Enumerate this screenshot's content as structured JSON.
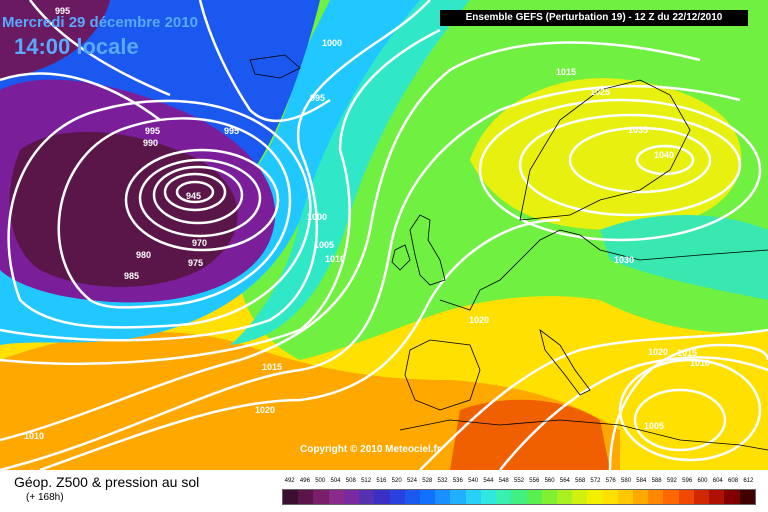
{
  "header": {
    "date": "Mercredi 29 décembre 2010",
    "time": "14:00 locale",
    "model_info": "Ensemble GEFS (Perturbation 19)  -  12 Z du 22/12/2010"
  },
  "copyright": "Copyright © 2010 Meteociel.fr",
  "legend": {
    "title": "Géop. Z500 & pression au sol",
    "subtitle": "(+ 168h)",
    "scale_values": [
      "492",
      "496",
      "500",
      "504",
      "508",
      "512",
      "516",
      "520",
      "524",
      "528",
      "532",
      "536",
      "540",
      "544",
      "548",
      "552",
      "556",
      "560",
      "564",
      "568",
      "572",
      "576",
      "580",
      "584",
      "588",
      "592",
      "596",
      "600",
      "604",
      "608",
      "612"
    ],
    "scale_colors": [
      "#3a1030",
      "#5a1648",
      "#7a1e6a",
      "#8c2a8c",
      "#7a2aa0",
      "#5530b0",
      "#3a30c8",
      "#2a40e0",
      "#1a58f0",
      "#1070ff",
      "#1890ff",
      "#20b0ff",
      "#28d0f8",
      "#30e8e0",
      "#38f0b0",
      "#40f080",
      "#58f050",
      "#80f030",
      "#a8f020",
      "#d0f010",
      "#f0f000",
      "#ffe000",
      "#ffc800",
      "#ffa800",
      "#ff8800",
      "#ff6800",
      "#f04800",
      "#d02800",
      "#b01000",
      "#800000",
      "#400000"
    ]
  },
  "isobar_labels": [
    {
      "text": "995"
    },
    {
      "text": "1000"
    },
    {
      "text": "995"
    },
    {
      "text": "995"
    },
    {
      "text": "990"
    },
    {
      "text": "995"
    },
    {
      "text": "945"
    },
    {
      "text": "1000"
    },
    {
      "text": "1005"
    },
    {
      "text": "1010"
    },
    {
      "text": "970"
    },
    {
      "text": "975"
    },
    {
      "text": "980"
    },
    {
      "text": "985"
    },
    {
      "text": "1015"
    },
    {
      "text": "1025"
    },
    {
      "text": "1035"
    },
    {
      "text": "1040"
    },
    {
      "text": "1030"
    },
    {
      "text": "1020"
    },
    {
      "text": "1020"
    },
    {
      "text": "1015"
    },
    {
      "text": "1010"
    },
    {
      "text": "1005"
    },
    {
      "text": "1015"
    },
    {
      "text": "1020"
    },
    {
      "text": "1010"
    }
  ]
}
